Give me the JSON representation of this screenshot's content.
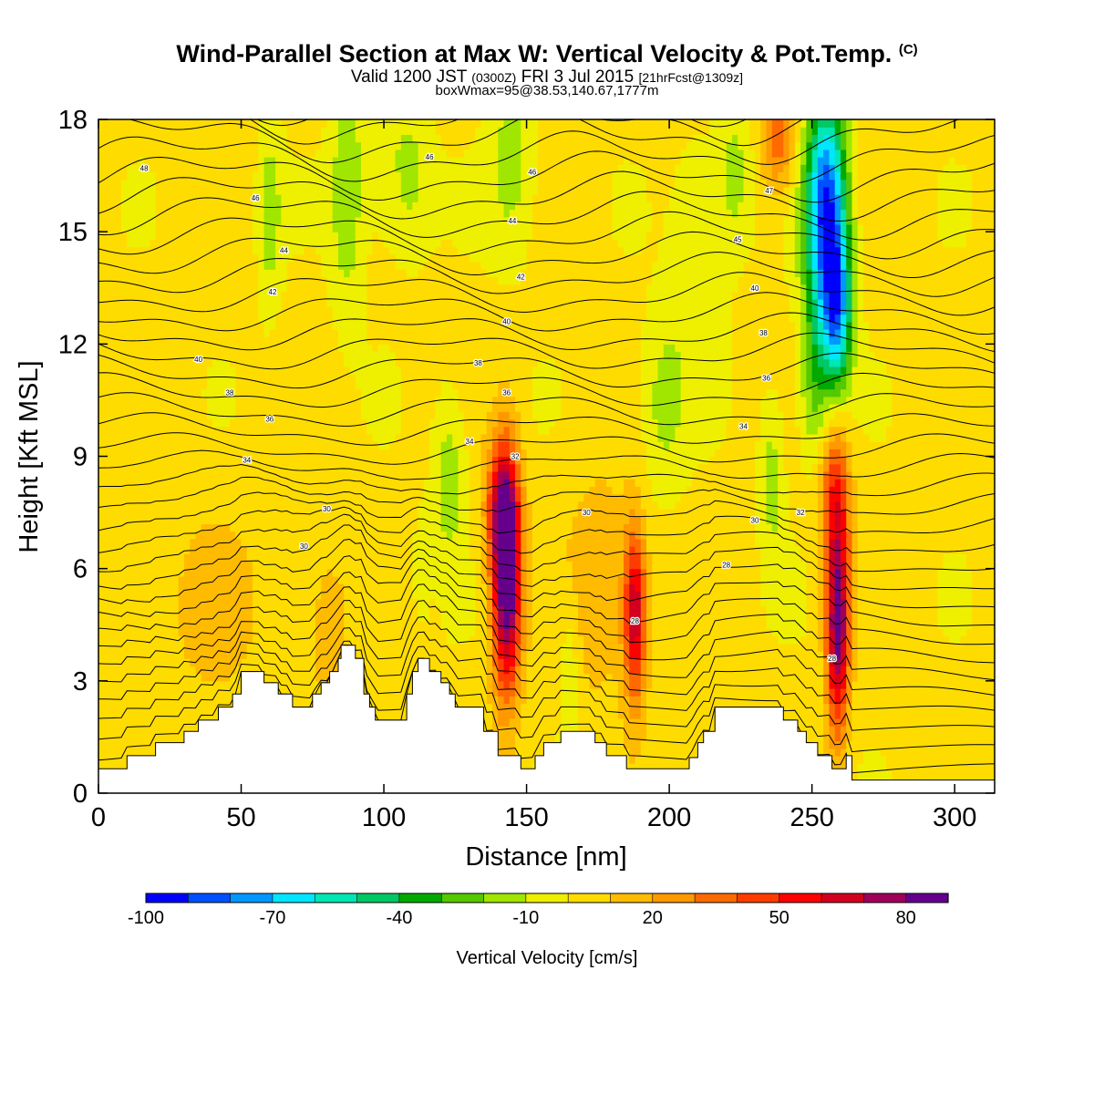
{
  "header": {
    "title": "Wind-Parallel Section at Max W: Vertical Velocity & Pot.Temp.",
    "copyright": "(C)",
    "valid_prefix": "Valid 1200 JST",
    "valid_zulu": "(0300Z)",
    "valid_date": "FRI 3 Jul 2015",
    "forecast_info": "[21hrFcst@1309z]",
    "box_info": "boxWmax=95@38.53,140.67,1777m"
  },
  "chart_data": {
    "type": "heatmap",
    "title": "Wind-Parallel Section at Max W: Vertical Velocity & Pot.Temp.",
    "xlabel": "Distance [nm]",
    "ylabel": "Height [Kft MSL]",
    "xlim": [
      0,
      314
    ],
    "ylim": [
      0,
      18
    ],
    "x_ticks": [
      0,
      50,
      100,
      150,
      200,
      250,
      300
    ],
    "y_ticks": [
      0,
      3,
      6,
      9,
      12,
      15,
      18
    ],
    "grid": false,
    "colorbar": {
      "label": "Vertical Velocity [cm/s]",
      "tick_values": [
        -100,
        -70,
        -40,
        -10,
        20,
        50,
        80
      ],
      "min": -100,
      "max": 90,
      "step": 10,
      "colors": [
        "#0000ff",
        "#0050ff",
        "#0098ff",
        "#00e6ff",
        "#00e6b4",
        "#00c864",
        "#00aa00",
        "#55c800",
        "#a0e600",
        "#eef000",
        "#ffdc00",
        "#ffbb00",
        "#ff9900",
        "#ff6a00",
        "#ff3c00",
        "#ff0000",
        "#d2001e",
        "#a0005a",
        "#64008c"
      ]
    },
    "terrain_profile": [
      [
        0,
        0.65
      ],
      [
        10,
        0.65
      ],
      [
        10,
        1.0
      ],
      [
        20,
        1.0
      ],
      [
        20,
        1.35
      ],
      [
        30,
        1.35
      ],
      [
        30,
        1.65
      ],
      [
        35,
        1.65
      ],
      [
        35,
        1.95
      ],
      [
        42,
        1.95
      ],
      [
        42,
        2.3
      ],
      [
        47,
        2.3
      ],
      [
        47,
        2.65
      ],
      [
        50,
        2.65
      ],
      [
        50,
        3.25
      ],
      [
        58,
        3.25
      ],
      [
        58,
        2.95
      ],
      [
        63,
        2.95
      ],
      [
        63,
        2.65
      ],
      [
        68,
        2.65
      ],
      [
        68,
        2.3
      ],
      [
        75,
        2.3
      ],
      [
        75,
        2.65
      ],
      [
        78,
        2.65
      ],
      [
        78,
        2.95
      ],
      [
        81,
        2.95
      ],
      [
        81,
        3.25
      ],
      [
        84,
        3.25
      ],
      [
        84,
        3.6
      ],
      [
        85,
        3.6
      ],
      [
        85,
        3.95
      ],
      [
        90,
        3.95
      ],
      [
        90,
        3.6
      ],
      [
        93,
        3.6
      ],
      [
        93,
        2.65
      ],
      [
        95,
        2.65
      ],
      [
        95,
        2.3
      ],
      [
        97,
        2.3
      ],
      [
        97,
        1.95
      ],
      [
        108,
        1.95
      ],
      [
        108,
        2.65
      ],
      [
        110,
        2.65
      ],
      [
        110,
        3.25
      ],
      [
        112,
        3.25
      ],
      [
        112,
        3.6
      ],
      [
        116,
        3.6
      ],
      [
        116,
        3.25
      ],
      [
        120,
        3.25
      ],
      [
        120,
        2.95
      ],
      [
        123,
        2.95
      ],
      [
        123,
        2.65
      ],
      [
        125,
        2.65
      ],
      [
        125,
        2.3
      ],
      [
        135,
        2.3
      ],
      [
        135,
        1.65
      ],
      [
        140,
        1.65
      ],
      [
        140,
        1.0
      ],
      [
        148,
        1.0
      ],
      [
        148,
        0.65
      ],
      [
        153,
        0.65
      ],
      [
        153,
        1.0
      ],
      [
        156,
        1.0
      ],
      [
        156,
        1.35
      ],
      [
        162,
        1.35
      ],
      [
        162,
        1.65
      ],
      [
        174,
        1.65
      ],
      [
        174,
        1.35
      ],
      [
        178,
        1.35
      ],
      [
        178,
        1.0
      ],
      [
        185,
        1.0
      ],
      [
        185,
        0.65
      ],
      [
        207,
        0.65
      ],
      [
        207,
        0.95
      ],
      [
        210,
        0.95
      ],
      [
        210,
        1.35
      ],
      [
        212,
        1.35
      ],
      [
        212,
        1.65
      ],
      [
        216,
        1.65
      ],
      [
        216,
        2.3
      ],
      [
        240,
        2.3
      ],
      [
        240,
        1.95
      ],
      [
        245,
        1.95
      ],
      [
        245,
        1.65
      ],
      [
        248,
        1.65
      ],
      [
        248,
        1.35
      ],
      [
        252,
        1.35
      ],
      [
        252,
        1.0
      ],
      [
        257,
        1.0
      ],
      [
        257,
        0.65
      ],
      [
        262,
        0.65
      ],
      [
        262,
        1.0
      ],
      [
        264,
        1.0
      ],
      [
        264,
        0.35
      ],
      [
        290,
        0.35
      ],
      [
        290,
        0.35
      ],
      [
        314,
        0.35
      ]
    ],
    "velocity_features": [
      {
        "x": 143,
        "z": 5.8,
        "sx": 3.5,
        "sz": 2.2,
        "w": 95
      },
      {
        "x": 141,
        "z": 7.6,
        "sx": 4.0,
        "sz": 1.2,
        "w": 40
      },
      {
        "x": 188,
        "z": 4.8,
        "sx": 2.8,
        "sz": 1.6,
        "w": 65
      },
      {
        "x": 259,
        "z": 4.5,
        "sx": 2.8,
        "sz": 2.0,
        "w": 85
      },
      {
        "x": 258,
        "z": 8.2,
        "sx": 3.8,
        "sz": 1.4,
        "w": 40
      },
      {
        "x": 238,
        "z": 17.5,
        "sx": 4.0,
        "sz": 1.0,
        "w": 35
      },
      {
        "x": 175,
        "z": 5.5,
        "sx": 9.0,
        "sz": 2.2,
        "w": 15
      },
      {
        "x": 40,
        "z": 5.0,
        "sx": 14.0,
        "sz": 2.0,
        "w": 10
      },
      {
        "x": 80,
        "z": 4.5,
        "sx": 6.0,
        "sz": 1.8,
        "w": 12
      },
      {
        "x": 255,
        "z": 15.5,
        "sx": 5.0,
        "sz": 2.2,
        "w": -95
      },
      {
        "x": 259,
        "z": 12.8,
        "sx": 3.5,
        "sz": 1.5,
        "w": -60
      },
      {
        "x": 251,
        "z": 11.0,
        "sx": 4.0,
        "sz": 1.6,
        "w": -25
      },
      {
        "x": 87,
        "z": 16.0,
        "sx": 4.0,
        "sz": 2.2,
        "w": -22
      },
      {
        "x": 60,
        "z": 15.5,
        "sx": 3.0,
        "sz": 1.8,
        "w": -18
      },
      {
        "x": 110,
        "z": 16.5,
        "sx": 5.0,
        "sz": 1.5,
        "w": -15
      },
      {
        "x": 123,
        "z": 8.5,
        "sx": 4.0,
        "sz": 1.6,
        "w": -20
      },
      {
        "x": 145,
        "z": 16.8,
        "sx": 6.0,
        "sz": 1.8,
        "w": -18
      },
      {
        "x": 198,
        "z": 10.5,
        "sx": 6.0,
        "sz": 1.6,
        "w": -18
      },
      {
        "x": 210,
        "z": 14.5,
        "sx": 6.0,
        "sz": 2.0,
        "w": -15
      },
      {
        "x": 223,
        "z": 16.5,
        "sx": 4.0,
        "sz": 1.5,
        "w": -18
      },
      {
        "x": 236,
        "z": 8.5,
        "sx": 3.0,
        "sz": 1.6,
        "w": -18
      },
      {
        "x": 165,
        "z": 3.5,
        "sx": 2.5,
        "sz": 1.5,
        "w": -15
      },
      {
        "x": 113,
        "z": 6.0,
        "sx": 2.0,
        "sz": 1.0,
        "w": -10
      },
      {
        "x": 100,
        "z": 17.0,
        "sx": 6.0,
        "sz": 2.0,
        "w": -10
      }
    ],
    "contour_labels": [
      {
        "text": "48",
        "x": 16,
        "z": 16.7
      },
      {
        "text": "46",
        "x": 116,
        "z": 17.0
      },
      {
        "text": "46",
        "x": 152,
        "z": 16.6
      },
      {
        "text": "47",
        "x": 235,
        "z": 16.1
      },
      {
        "text": "46",
        "x": 55,
        "z": 15.9
      },
      {
        "text": "44",
        "x": 145,
        "z": 15.3
      },
      {
        "text": "45",
        "x": 224,
        "z": 14.8
      },
      {
        "text": "44",
        "x": 65,
        "z": 14.5
      },
      {
        "text": "42",
        "x": 148,
        "z": 13.8
      },
      {
        "text": "42",
        "x": 61,
        "z": 13.4
      },
      {
        "text": "40",
        "x": 230,
        "z": 13.5
      },
      {
        "text": "40",
        "x": 143,
        "z": 12.6
      },
      {
        "text": "38",
        "x": 233,
        "z": 12.3
      },
      {
        "text": "40",
        "x": 35,
        "z": 11.6
      },
      {
        "text": "38",
        "x": 133,
        "z": 11.5
      },
      {
        "text": "36",
        "x": 234,
        "z": 11.1
      },
      {
        "text": "38",
        "x": 46,
        "z": 10.7
      },
      {
        "text": "36",
        "x": 143,
        "z": 10.7
      },
      {
        "text": "36",
        "x": 60,
        "z": 10.0
      },
      {
        "text": "34",
        "x": 226,
        "z": 9.8
      },
      {
        "text": "34",
        "x": 130,
        "z": 9.4
      },
      {
        "text": "32",
        "x": 146,
        "z": 9.0
      },
      {
        "text": "34",
        "x": 52,
        "z": 8.9
      },
      {
        "text": "30",
        "x": 80,
        "z": 7.6
      },
      {
        "text": "30",
        "x": 171,
        "z": 7.5
      },
      {
        "text": "30",
        "x": 230,
        "z": 7.3
      },
      {
        "text": "32",
        "x": 246,
        "z": 7.5
      },
      {
        "text": "30",
        "x": 72,
        "z": 6.6
      },
      {
        "text": "28",
        "x": 220,
        "z": 6.1
      },
      {
        "text": "28",
        "x": 188,
        "z": 4.6
      },
      {
        "text": "28",
        "x": 257,
        "z": 3.6
      }
    ]
  }
}
